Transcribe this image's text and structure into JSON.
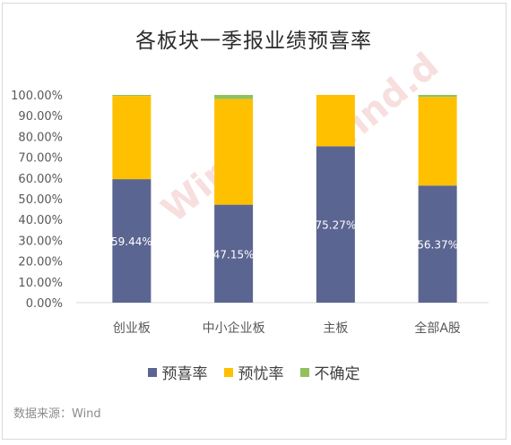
{
  "chart_data": {
    "type": "bar",
    "stacked": true,
    "title": "各板块一季报业绩预喜率",
    "categories": [
      "创业板",
      "中小企业板",
      "主板",
      "全部A股"
    ],
    "series": [
      {
        "name": "预喜率",
        "values": [
          59.44,
          47.15,
          75.27,
          56.37
        ],
        "color": "#5b6591"
      },
      {
        "name": "预忧率",
        "values": [
          40.06,
          50.85,
          24.73,
          42.63
        ],
        "color": "#ffc000"
      },
      {
        "name": "不确定",
        "values": [
          0.5,
          2.0,
          0.0,
          1.0
        ],
        "color": "#92c15c"
      }
    ],
    "data_labels": [
      "59.44%",
      "47.15%",
      "75.27%",
      "56.37%"
    ],
    "yticks": [
      "0.00%",
      "10.00%",
      "20.00%",
      "30.00%",
      "40.00%",
      "50.00%",
      "60.00%",
      "70.00%",
      "80.00%",
      "90.00%",
      "100.00%"
    ],
    "ylim": [
      0,
      100
    ],
    "grid": false,
    "legend": "bottom",
    "source": "数据来源：Wind",
    "watermarks": [
      "Wind",
      "Wind.d"
    ]
  }
}
